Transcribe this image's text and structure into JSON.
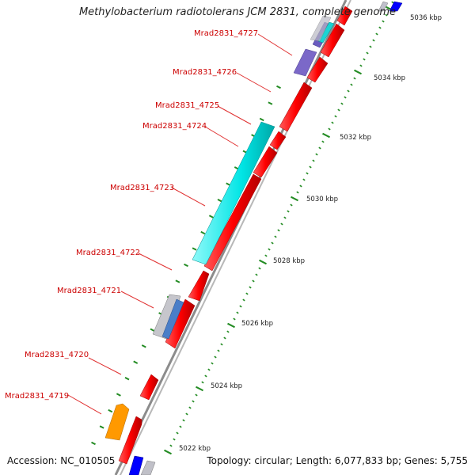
{
  "title": "Methylobacterium radiotolerans JCM 2831, complete genome",
  "footer": {
    "accession": "Accession: NC_010505",
    "summary": "Topology: circular; Length: 6,077,833 bp; Genes: 5,755"
  },
  "colors": {
    "forward_gene": "#ff0000",
    "reverse_gene_cyan": "#00e5e5",
    "reverse_gene_purple": "#7b68c8",
    "reverse_gene_orange": "#ff9900",
    "reverse_gene_blue": "#0000ff",
    "reverse_gene_gray": "#b0b0b8",
    "axis": "#909090",
    "tick": "#228b22",
    "gene_label": "#cc0000"
  },
  "scale": {
    "labels": [
      "5022 kbp",
      "5024 kbp",
      "5026 kbp",
      "5028 kbp",
      "5030 kbp",
      "5032 kbp",
      "5034 kbp",
      "5036 kbp"
    ],
    "major_kbp": [
      5022,
      5024,
      5026,
      5028,
      5030,
      5032,
      5034,
      5036
    ]
  },
  "gene_labels": [
    "Mrad2831_4719",
    "Mrad2831_4720",
    "Mrad2831_4721",
    "Mrad2831_4722",
    "Mrad2831_4723",
    "Mrad2831_4724",
    "Mrad2831_4725",
    "Mrad2831_4726",
    "Mrad2831_4727"
  ]
}
